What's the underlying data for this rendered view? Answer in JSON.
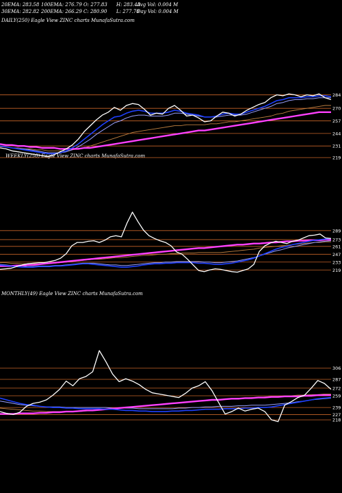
{
  "stats": {
    "row1": [
      "20EMA: 283.58",
      "100EMA: 276.79",
      "O: 277.83",
      "H: 283.43",
      "Avg Vol: 0.004  M"
    ],
    "row2": [
      "30EMA: 282.82",
      "200EMA: 266.29",
      "C: 280.90",
      "L: 277.70",
      "Day Vol: 0.004 M"
    ]
  },
  "colors": {
    "background": "#000000",
    "price": "#ffffff",
    "ema20": "#1e40ff",
    "ema30": "#9aa0ff",
    "ema100": "#c08040",
    "ema200": "#ff40ff",
    "level_line": "#c86428"
  },
  "chart_data": [
    {
      "type": "line",
      "title": "DAILY(250) Eagle  View  ZINC charts MunafaSutra.com",
      "yticks": [
        284,
        270,
        257,
        244,
        231,
        219
      ],
      "ylim": [
        212,
        290
      ],
      "series": [
        {
          "role": "price",
          "values": [
            229,
            228,
            226,
            225,
            224,
            223,
            222,
            221,
            220,
            222,
            225,
            228,
            232,
            238,
            246,
            252,
            258,
            263,
            266,
            271,
            268,
            273,
            275,
            274,
            269,
            263,
            265,
            264,
            270,
            273,
            268,
            262,
            263,
            260,
            256,
            257,
            262,
            266,
            265,
            262,
            264,
            268,
            271,
            274,
            276,
            281,
            284,
            283,
            285,
            284,
            282,
            284,
            283,
            285,
            281,
            279
          ]
        },
        {
          "role": "ema20",
          "values": [
            231,
            230,
            229,
            228,
            227,
            226,
            225,
            224,
            223,
            223,
            224,
            226,
            229,
            233,
            238,
            243,
            248,
            253,
            257,
            261,
            262,
            265,
            267,
            268,
            267,
            265,
            265,
            265,
            266,
            268,
            267,
            265,
            264,
            263,
            261,
            261,
            262,
            264,
            265,
            264,
            264,
            266,
            268,
            270,
            272,
            275,
            278,
            279,
            281,
            281,
            281,
            282,
            282,
            283,
            283,
            282
          ]
        },
        {
          "role": "ema30",
          "values": [
            231,
            230,
            229,
            228,
            228,
            227,
            226,
            225,
            224,
            224,
            224,
            225,
            227,
            230,
            234,
            238,
            243,
            247,
            251,
            255,
            257,
            260,
            262,
            263,
            263,
            262,
            262,
            262,
            263,
            265,
            265,
            264,
            263,
            262,
            261,
            261,
            261,
            262,
            263,
            263,
            263,
            264,
            266,
            268,
            270,
            272,
            275,
            276,
            278,
            279,
            279,
            280,
            280,
            281,
            281,
            281
          ]
        },
        {
          "role": "ema100",
          "values": [
            230,
            230,
            229,
            229,
            228,
            228,
            227,
            227,
            226,
            226,
            226,
            226,
            227,
            228,
            229,
            231,
            233,
            235,
            237,
            239,
            241,
            243,
            245,
            246,
            247,
            248,
            249,
            250,
            251,
            252,
            252,
            253,
            253,
            253,
            253,
            254,
            254,
            255,
            256,
            256,
            257,
            258,
            259,
            260,
            261,
            262,
            264,
            265,
            267,
            268,
            269,
            270,
            271,
            272,
            273,
            273
          ]
        },
        {
          "role": "ema200",
          "values": [
            233,
            232,
            232,
            231,
            231,
            230,
            230,
            229,
            229,
            229,
            228,
            228,
            228,
            228,
            229,
            229,
            230,
            231,
            232,
            233,
            234,
            235,
            236,
            237,
            238,
            239,
            240,
            241,
            242,
            243,
            244,
            245,
            246,
            247,
            247,
            248,
            249,
            250,
            251,
            252,
            253,
            254,
            255,
            256,
            257,
            258,
            259,
            260,
            261,
            262,
            263,
            264,
            265,
            266,
            266,
            266
          ]
        }
      ]
    },
    {
      "type": "line",
      "title": "WEEKLY(250) Eagle  View  ZINC charts MunafaSutra.com",
      "yticks": [
        289,
        273,
        261,
        247,
        233,
        219
      ],
      "ylim": [
        212,
        340
      ],
      "series": [
        {
          "role": "price",
          "values": [
            220,
            221,
            222,
            225,
            228,
            230,
            231,
            232,
            232,
            234,
            236,
            240,
            248,
            262,
            268,
            268,
            270,
            271,
            268,
            272,
            278,
            280,
            278,
            302,
            322,
            305,
            290,
            280,
            275,
            271,
            268,
            262,
            251,
            247,
            238,
            228,
            218,
            216,
            219,
            221,
            220,
            218,
            216,
            215,
            218,
            221,
            229,
            252,
            262,
            267,
            270,
            268,
            266,
            270,
            272,
            276,
            280,
            281,
            283,
            276,
            275
          ]
        },
        {
          "role": "ema20",
          "values": [
            228,
            227,
            226,
            225,
            224,
            224,
            224,
            225,
            225,
            225,
            226,
            226,
            227,
            228,
            229,
            230,
            230,
            229,
            228,
            227,
            226,
            225,
            224,
            224,
            225,
            226,
            228,
            229,
            230,
            230,
            231,
            231,
            232,
            232,
            232,
            232,
            231,
            231,
            230,
            229,
            229,
            230,
            231,
            233,
            235,
            237,
            240,
            244,
            248,
            252,
            256,
            259,
            261,
            264,
            266,
            268,
            270,
            272,
            273,
            274,
            275
          ]
        },
        {
          "role": "ema30",
          "values": [
            229,
            228,
            227,
            226,
            226,
            225,
            225,
            226,
            226,
            226,
            227,
            227,
            228,
            229,
            230,
            231,
            231,
            231,
            230,
            229,
            228,
            228,
            227,
            227,
            228,
            229,
            230,
            231,
            232,
            232,
            233,
            233,
            234,
            234,
            234,
            234,
            234,
            233,
            233,
            232,
            232,
            233,
            234,
            235,
            237,
            239,
            241,
            244,
            247,
            250,
            253,
            255,
            258,
            260,
            262,
            264,
            266,
            268,
            269,
            270,
            271
          ]
        },
        {
          "role": "ema100",
          "values": [
            232,
            232,
            231,
            231,
            230,
            230,
            230,
            230,
            230,
            231,
            231,
            232,
            233,
            234,
            235,
            236,
            237,
            238,
            238,
            239,
            240,
            241,
            241,
            242,
            243,
            244,
            245,
            245,
            246,
            247,
            247,
            248,
            248,
            249,
            249,
            249,
            250,
            250,
            250,
            250,
            250,
            251,
            252,
            253,
            254,
            255,
            256,
            258,
            259,
            260,
            261,
            262,
            263,
            264,
            265,
            266,
            267,
            268,
            268,
            269,
            269
          ]
        },
        {
          "role": "ema200",
          "values": [
            226,
            226,
            226,
            227,
            227,
            228,
            228,
            229,
            230,
            231,
            232,
            233,
            234,
            235,
            236,
            237,
            238,
            239,
            240,
            241,
            242,
            243,
            244,
            245,
            246,
            247,
            248,
            249,
            250,
            251,
            252,
            253,
            254,
            255,
            256,
            257,
            258,
            258,
            259,
            260,
            261,
            262,
            263,
            264,
            264,
            265,
            266,
            266,
            267,
            268,
            268,
            269,
            270,
            270,
            271,
            271,
            272,
            272,
            272,
            273,
            273
          ]
        }
      ]
    },
    {
      "type": "line",
      "title": "MONTHLY(49) Eagle  View  ZINC charts MunafaSutra.com",
      "yticks": [
        306,
        287,
        272,
        259,
        239,
        227,
        218
      ],
      "ylim": [
        210,
        350
      ],
      "series": [
        {
          "role": "price",
          "values": [
            232,
            229,
            227,
            231,
            241,
            246,
            248,
            252,
            260,
            270,
            284,
            276,
            288,
            292,
            300,
            336,
            317,
            296,
            283,
            288,
            284,
            278,
            270,
            264,
            262,
            260,
            258,
            256,
            263,
            272,
            276,
            283,
            268,
            248,
            228,
            232,
            238,
            233,
            236,
            238,
            232,
            218,
            215,
            243,
            249,
            256,
            260,
            272,
            285,
            280,
            270
          ]
        },
        {
          "role": "ema20",
          "values": [
            255,
            252,
            249,
            246,
            244,
            243,
            241,
            240,
            239,
            239,
            238,
            238,
            237,
            237,
            237,
            237,
            236,
            236,
            235,
            234,
            234,
            233,
            233,
            232,
            232,
            232,
            233,
            233,
            234,
            234,
            235,
            236,
            236,
            236,
            237,
            237,
            237,
            238,
            238,
            239,
            239,
            240,
            242,
            244,
            246,
            248,
            250,
            252,
            254,
            255,
            256
          ]
        },
        {
          "role": "ema30",
          "values": [
            250,
            248,
            246,
            244,
            243,
            242,
            241,
            240,
            240,
            240,
            239,
            239,
            239,
            239,
            239,
            239,
            239,
            238,
            238,
            238,
            238,
            237,
            237,
            237,
            237,
            237,
            237,
            238,
            238,
            239,
            239,
            240,
            240,
            241,
            241,
            241,
            242,
            242,
            243,
            243,
            243,
            244,
            245,
            246,
            247,
            249,
            250,
            252,
            253,
            254,
            255
          ]
        },
        {
          "role": "ema100",
          "values": [
            238,
            237,
            236,
            235,
            234,
            233,
            233,
            232,
            232,
            232,
            232,
            232,
            232,
            233,
            234,
            235,
            236,
            237,
            238,
            239,
            240,
            241,
            242,
            243,
            244,
            245,
            246,
            247,
            248,
            249,
            250,
            251,
            252,
            253,
            253,
            254,
            255,
            255,
            256,
            256,
            257,
            258,
            258,
            259,
            259,
            260,
            260,
            261,
            261,
            262,
            262
          ]
        },
        {
          "role": "ema200",
          "values": [
            228,
            228,
            228,
            229,
            229,
            229,
            230,
            230,
            231,
            231,
            232,
            232,
            233,
            234,
            234,
            235,
            236,
            237,
            238,
            239,
            240,
            241,
            242,
            243,
            244,
            245,
            246,
            247,
            248,
            249,
            250,
            251,
            252,
            252,
            253,
            254,
            254,
            255,
            255,
            256,
            256,
            257,
            257,
            258,
            258,
            258,
            259,
            259,
            260,
            260,
            260
          ]
        }
      ]
    }
  ]
}
